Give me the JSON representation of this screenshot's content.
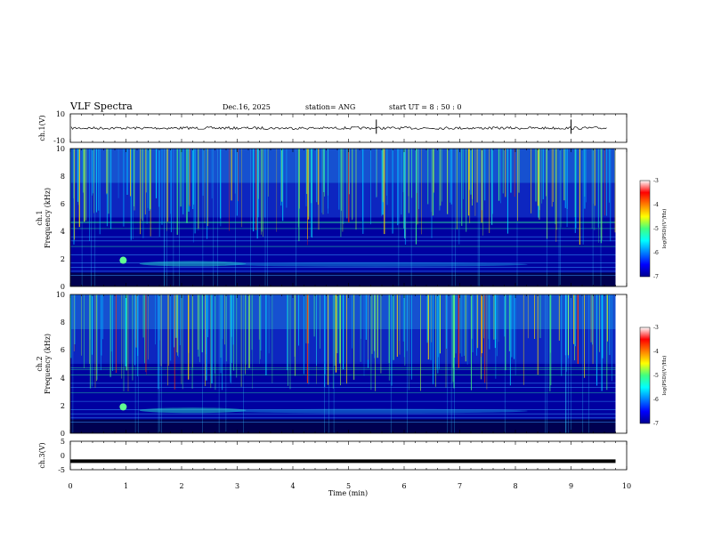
{
  "header": {
    "title": "VLF Spectra",
    "date": "Dec.16, 2025",
    "station": "station= ANG",
    "start": "start  UT =   8 : 50 : 0"
  },
  "chart_data": [
    {
      "type": "line",
      "name": "ch1-waveform",
      "ylabel": "ch.1(V)",
      "ylim": [
        -10,
        10
      ],
      "yticks": [
        "10",
        "-10"
      ],
      "xlim": [
        0,
        10
      ],
      "description_values": {
        "baseline": 0,
        "spikes_at_min": [
          5.5,
          9.0
        ]
      }
    },
    {
      "type": "heatmap",
      "name": "ch1-spectrogram",
      "ylabel_line1": "ch.1",
      "ylabel_line2": "Frequency (kHz)",
      "ylim": [
        0,
        10
      ],
      "yticks": [
        "0",
        "2",
        "4",
        "6",
        "8",
        "10"
      ],
      "xlim": [
        0,
        10
      ],
      "data_end_min": 9.8,
      "colorbar": {
        "label": "log(PSD)(V²/Hz)",
        "range": [
          -7,
          -3
        ],
        "ticks": [
          "-3",
          "-4",
          "-5",
          "-6",
          "-7"
        ]
      }
    },
    {
      "type": "heatmap",
      "name": "ch2-spectrogram",
      "ylabel_line1": "ch.2",
      "ylabel_line2": "Frequency (kHz)",
      "ylim": [
        0,
        10
      ],
      "yticks": [
        "0",
        "2",
        "4",
        "6",
        "8",
        "10"
      ],
      "xlim": [
        0,
        10
      ],
      "data_end_min": 9.8,
      "colorbar": {
        "label": "log(PSD)(V²/Hz)",
        "range": [
          -7,
          -3
        ],
        "ticks": [
          "-3",
          "-4",
          "-5",
          "-6",
          "-7"
        ]
      }
    },
    {
      "type": "line",
      "name": "ch3-waveform",
      "ylabel": "ch.3(V)",
      "ylim": [
        -5,
        5
      ],
      "yticks": [
        "5",
        "0",
        "-5"
      ],
      "xlim": [
        0,
        10
      ],
      "description_values": {
        "level": -2
      }
    }
  ],
  "xaxis": {
    "label": "Time  (min)",
    "ticks": [
      "0",
      "1",
      "2",
      "3",
      "4",
      "5",
      "6",
      "7",
      "8",
      "9",
      "10"
    ]
  }
}
